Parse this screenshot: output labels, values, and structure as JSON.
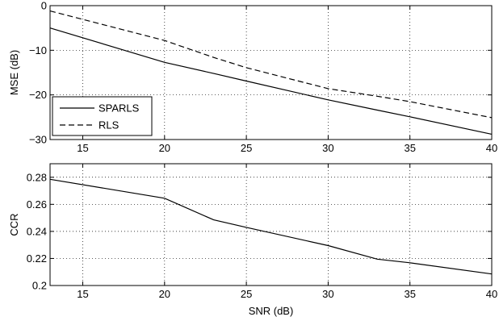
{
  "chart_data": [
    {
      "type": "line",
      "xlabel": "",
      "ylabel": "MSE (dB)",
      "xlim": [
        13,
        40
      ],
      "ylim": [
        -30,
        0
      ],
      "xticks": [
        15,
        20,
        25,
        30,
        35,
        40
      ],
      "yticks": [
        0,
        -10,
        -20,
        -30
      ],
      "ytick_labels": [
        "0",
        "−10",
        "−20",
        "−30"
      ],
      "grid": true,
      "legend_position": "bottom-left",
      "series": [
        {
          "name": "SPARLS",
          "style": "solid",
          "color": "#000000",
          "x": [
            13,
            20,
            23,
            25,
            30,
            33,
            35,
            40
          ],
          "y": [
            -5,
            -12.7,
            -15.2,
            -16.9,
            -21.1,
            -23.4,
            -24.9,
            -28.8
          ]
        },
        {
          "name": "RLS",
          "style": "dashed",
          "color": "#000000",
          "x": [
            13,
            20,
            23,
            25,
            30,
            33,
            35,
            40
          ],
          "y": [
            -1.2,
            -7.8,
            -11.6,
            -13.9,
            -18.6,
            -20.3,
            -21.5,
            -25.1
          ]
        }
      ]
    },
    {
      "type": "line",
      "xlabel": "SNR (dB)",
      "ylabel": "CCR",
      "xlim": [
        13,
        40
      ],
      "ylim": [
        0.2,
        0.29
      ],
      "xticks": [
        15,
        20,
        25,
        30,
        35,
        40
      ],
      "yticks": [
        0.2,
        0.22,
        0.24,
        0.26,
        0.28
      ],
      "ytick_labels": [
        "0.2",
        "0.22",
        "0.24",
        "0.26",
        "0.28"
      ],
      "grid": true,
      "series": [
        {
          "name": "",
          "style": "solid",
          "color": "#000000",
          "x": [
            13,
            20,
            23,
            25,
            30,
            33,
            35,
            40
          ],
          "y": [
            0.2785,
            0.2645,
            0.2485,
            0.243,
            0.2295,
            0.2195,
            0.2168,
            0.2085
          ]
        }
      ]
    }
  ]
}
